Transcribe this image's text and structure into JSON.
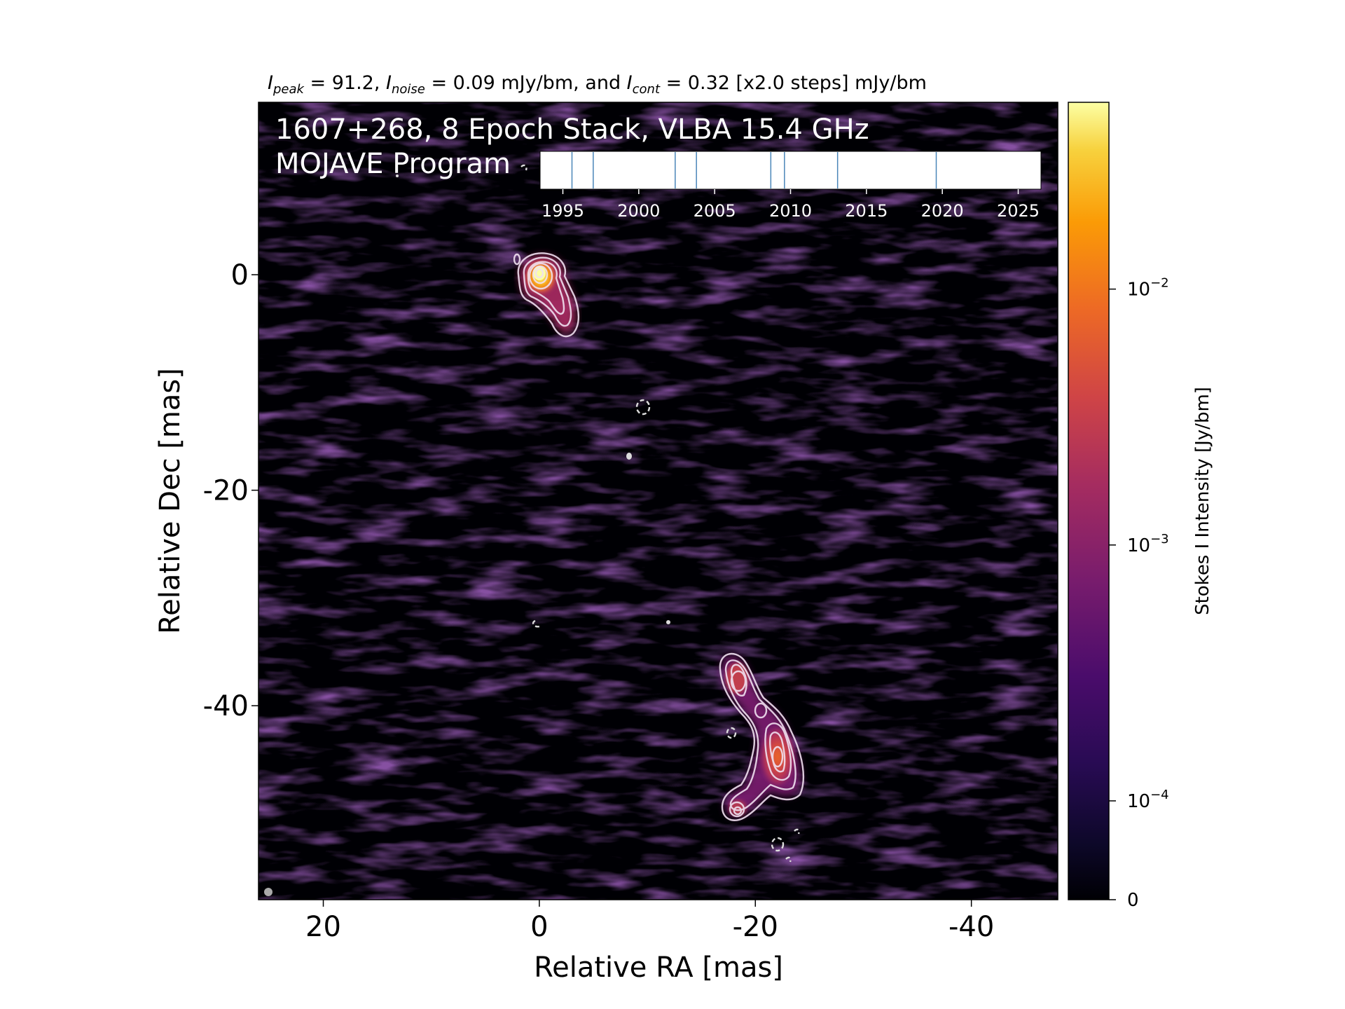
{
  "chart_data": {
    "type": "heatmap",
    "header": {
      "i_peak_symbol": "I",
      "i_peak_sub": "peak",
      "i_peak_text": " = 91.2, ",
      "i_noise_symbol": "I",
      "i_noise_sub": "noise",
      "i_noise_text": " = 0.09 mJy/bm, and ",
      "i_cont_symbol": "I",
      "i_cont_sub": "cont",
      "i_cont_text": " = 0.32 [x2.0 steps] mJy/bm"
    },
    "title_line1": "1607+268, 8 Epoch Stack, VLBA 15.4 GHz",
    "title_line2": "MOJAVE Program",
    "xlabel": "Relative RA [mas]",
    "ylabel": "Relative Dec [mas]",
    "xlim": [
      26,
      -48
    ],
    "ylim": [
      -58,
      16
    ],
    "x_ticks": [
      20,
      0,
      -20,
      -40
    ],
    "x_tick_labels": [
      "20",
      "0",
      "-20",
      "-40"
    ],
    "y_ticks": [
      0,
      -20,
      -40
    ],
    "y_tick_labels": [
      "0",
      "-20",
      "-40"
    ],
    "colorbar": {
      "label": "Stokes I Intensity [Jy/bm]",
      "scale": "log",
      "colormap": "inferno",
      "ticks": [
        {
          "value": 0.01,
          "base": "10",
          "exp": "−2"
        },
        {
          "value": 0.001,
          "base": "10",
          "exp": "−3"
        },
        {
          "value": 0.0001,
          "base": "10",
          "exp": "−4"
        },
        {
          "value": 0,
          "base": "0",
          "exp": ""
        }
      ]
    },
    "epochs": {
      "xlim": [
        1993.5,
        2026.5
      ],
      "ticks": [
        1995,
        2000,
        2005,
        2010,
        2015,
        2020,
        2025
      ],
      "tick_labels": [
        "1995",
        "2000",
        "2005",
        "2010",
        "2015",
        "2020",
        "2025"
      ],
      "dates": [
        1995.6,
        1997.0,
        2002.4,
        2003.8,
        2008.7,
        2009.6,
        2013.1,
        2019.6
      ]
    },
    "components": [
      {
        "name": "core",
        "x": 0,
        "y": 0
      },
      {
        "name": "southern-lobe",
        "x": -22,
        "y": -46
      }
    ],
    "colors": {
      "background": "#000004",
      "contour": "#f0e0f0",
      "timeline_line": "#4a86b8",
      "beam": "#aaaaaa"
    }
  }
}
